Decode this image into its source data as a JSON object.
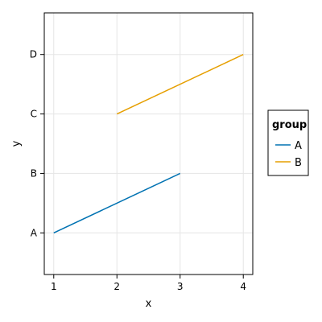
{
  "chart_data": {
    "type": "line",
    "xlabel": "x",
    "ylabel": "y",
    "x_ticks": [
      "1",
      "2",
      "3",
      "4"
    ],
    "y_categories": [
      "A",
      "B",
      "C",
      "D"
    ],
    "xlim": [
      0.85,
      4.15
    ],
    "ylim": [
      0.3,
      4.7
    ],
    "grid": true,
    "legend": {
      "title": "group",
      "placement": "right"
    },
    "series": [
      {
        "name": "A",
        "color": "#0072B2",
        "x": [
          1,
          3
        ],
        "y": [
          "A",
          "B"
        ]
      },
      {
        "name": "B",
        "color": "#E69F00",
        "x": [
          2,
          4
        ],
        "y": [
          "C",
          "D"
        ]
      }
    ]
  }
}
